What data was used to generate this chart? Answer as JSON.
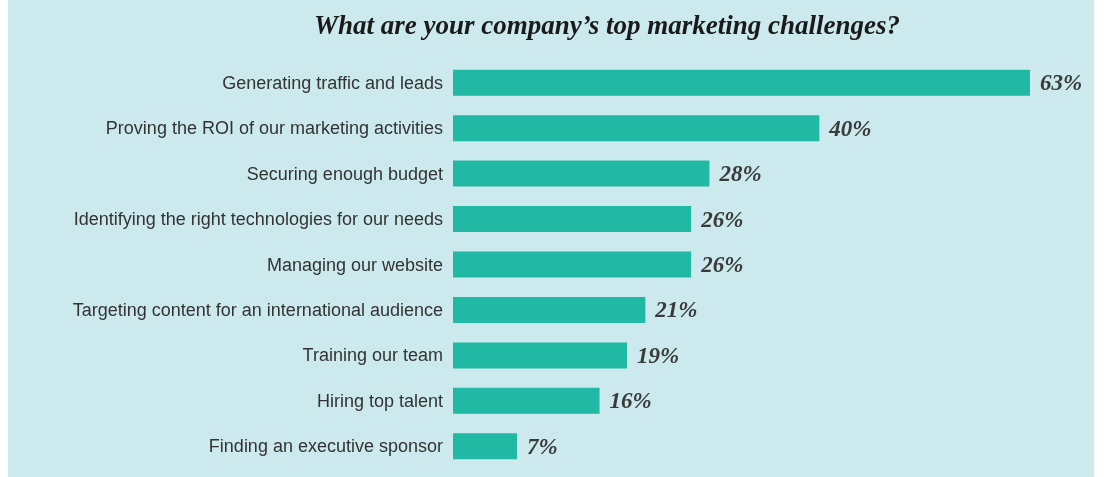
{
  "chart_data": {
    "type": "bar",
    "orientation": "horizontal",
    "title": "What are your company’s top marketing challenges?",
    "categories": [
      "Generating traffic and leads",
      "Proving the ROI of our marketing activities",
      "Securing enough budget",
      "Identifying the right technologies for our needs",
      "Managing our website",
      "Targeting content for an international audience",
      "Training our team",
      "Hiring top talent",
      "Finding an executive sponsor"
    ],
    "values": [
      63,
      40,
      28,
      26,
      26,
      21,
      19,
      16,
      7
    ],
    "value_labels": [
      "63%",
      "40%",
      "28%",
      "26%",
      "26%",
      "21%",
      "19%",
      "16%",
      "7%"
    ],
    "color": "#22b9a4"
  }
}
